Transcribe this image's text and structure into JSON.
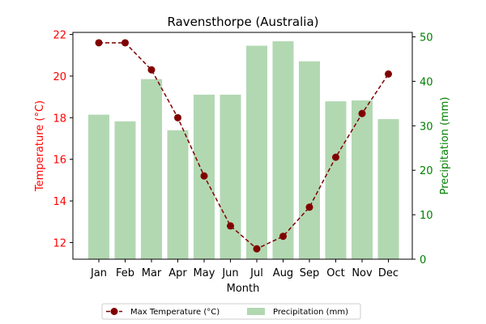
{
  "chart_data": {
    "type": "bar+line",
    "title": "Ravensthorpe (Australia)",
    "xlabel": "Month",
    "ylabel_left": "Temperature (°C)",
    "ylabel_right": "Precipitation (mm)",
    "categories": [
      "Jan",
      "Feb",
      "Mar",
      "Apr",
      "May",
      "Jun",
      "Jul",
      "Aug",
      "Sep",
      "Oct",
      "Nov",
      "Dec"
    ],
    "ylim_left": [
      11.2,
      22.1
    ],
    "ylim_right": [
      0,
      51
    ],
    "yticks_left": [
      12,
      14,
      16,
      18,
      20,
      22
    ],
    "yticks_right": [
      0,
      10,
      20,
      30,
      40,
      50
    ],
    "series": [
      {
        "name": "Max Temperature (°C)",
        "type": "line",
        "axis": "left",
        "color": "#800000",
        "style": "dashed",
        "marker": "circle",
        "values": [
          21.6,
          21.6,
          20.3,
          18.0,
          15.2,
          12.8,
          11.7,
          12.3,
          13.7,
          16.1,
          18.2,
          20.1
        ]
      },
      {
        "name": "Precipitation (mm)",
        "type": "bar",
        "axis": "right",
        "color": "#b2d8b2",
        "values": [
          32.5,
          31.0,
          40.5,
          29.0,
          37.0,
          37.0,
          48.0,
          49.0,
          44.5,
          35.5,
          35.7,
          31.5
        ]
      }
    ],
    "left_axis_color": "#ff0000",
    "right_axis_color": "#008000",
    "legend": {
      "placement": "bottom-center",
      "columns": 2
    },
    "grid": false
  }
}
